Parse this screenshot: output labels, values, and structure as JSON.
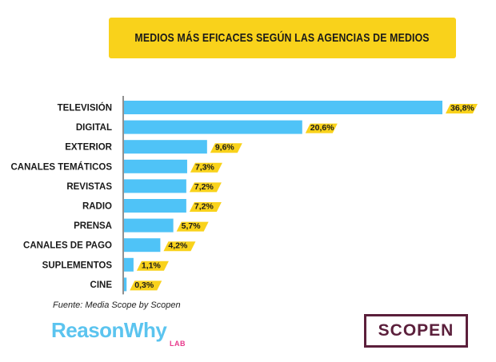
{
  "header": {
    "title": "MEDIOS MÁS EFICACES SEGÚN LAS AGENCIAS DE MEDIOS"
  },
  "footer": {
    "source": "Fuente: Media Scope by Scopen",
    "brand_left": "ReasonWhy",
    "brand_left_sub": "LAB",
    "brand_right": "SCOPEN"
  },
  "colors": {
    "bar": "#4fc3f7",
    "label_accent": "#f9d21b",
    "banner": "#f9d21b",
    "scopen": "#5b1f3b"
  },
  "chart_data": {
    "type": "bar",
    "orientation": "horizontal",
    "title": "MEDIOS MÁS EFICACES SEGÚN LAS AGENCIAS DE MEDIOS",
    "categories": [
      "TELEVISIÓN",
      "DIGITAL",
      "EXTERIOR",
      "CANALES TEMÁTICOS",
      "REVISTAS",
      "RADIO",
      "PRENSA",
      "CANALES DE PAGO",
      "SUPLEMENTOS",
      "CINE"
    ],
    "values": [
      36.8,
      20.6,
      9.6,
      7.3,
      7.2,
      7.2,
      5.7,
      4.2,
      1.1,
      0.3
    ],
    "value_labels": [
      "36,8%",
      "20,6%",
      "9,6%",
      "7,3%",
      "7,2%",
      "7,2%",
      "5,7%",
      "4,2%",
      "1,1%",
      "0,3%"
    ],
    "xlabel": "",
    "ylabel": "",
    "grid": false,
    "legend": "none"
  }
}
